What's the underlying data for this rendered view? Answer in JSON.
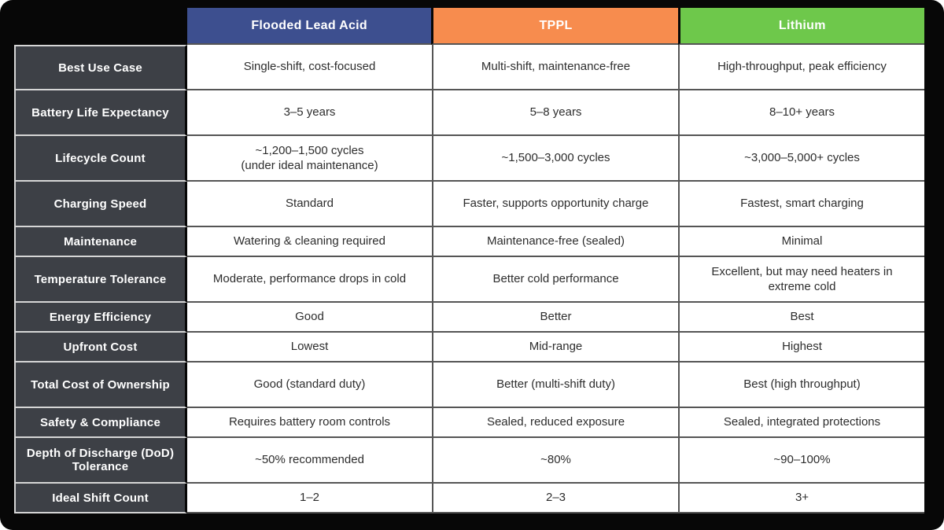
{
  "colors": {
    "frame_background": "#070707",
    "column_flooded": "#3D4F8F",
    "column_tppl": "#F78C4E",
    "column_lithium": "#6EC84B",
    "row_label_background": "#3D4046",
    "cell_background": "#ffffff",
    "grid_line": "#555555"
  },
  "chart_data": {
    "type": "table",
    "header": {
      "columns": [
        {
          "label": "Flooded Lead Acid",
          "color": "#3D4F8F"
        },
        {
          "label": "TPPL",
          "color": "#F78C4E"
        },
        {
          "label": "Lithium",
          "color": "#6EC84B"
        }
      ]
    },
    "rows": [
      {
        "label": "Best Use Case",
        "cells": [
          "Single-shift, cost-focused",
          "Multi-shift, maintenance-free",
          "High-throughput, peak efficiency"
        ]
      },
      {
        "label": "Battery Life Expectancy",
        "cells": [
          "3–5 years",
          "5–8 years",
          "8–10+ years"
        ]
      },
      {
        "label": "Lifecycle Count",
        "cells": [
          "~1,200–1,500 cycles\n(under ideal maintenance)",
          "~1,500–3,000 cycles",
          "~3,000–5,000+ cycles"
        ]
      },
      {
        "label": "Charging Speed",
        "cells": [
          "Standard",
          "Faster, supports opportunity charge",
          "Fastest, smart charging"
        ]
      },
      {
        "label": "Maintenance",
        "cells": [
          "Watering & cleaning required",
          "Maintenance-free (sealed)",
          "Minimal"
        ]
      },
      {
        "label": "Temperature Tolerance",
        "cells": [
          "Moderate, performance drops in cold",
          "Better cold performance",
          "Excellent, but may need heaters in extreme cold"
        ]
      },
      {
        "label": "Energy Efficiency",
        "cells": [
          "Good",
          "Better",
          "Best"
        ]
      },
      {
        "label": "Upfront Cost",
        "cells": [
          "Lowest",
          "Mid-range",
          "Highest"
        ]
      },
      {
        "label": "Total Cost of Ownership",
        "cells": [
          "Good (standard duty)",
          "Better (multi-shift duty)",
          "Best (high throughput)"
        ]
      },
      {
        "label": "Safety & Compliance",
        "cells": [
          "Requires battery room controls",
          "Sealed, reduced exposure",
          "Sealed, integrated protections"
        ]
      },
      {
        "label": "Depth of Discharge (DoD) Tolerance",
        "cells": [
          "~50% recommended",
          "~80%",
          "~90–100%"
        ]
      },
      {
        "label": "Ideal Shift Count",
        "cells": [
          "1–2",
          "2–3",
          "3+"
        ]
      }
    ]
  }
}
